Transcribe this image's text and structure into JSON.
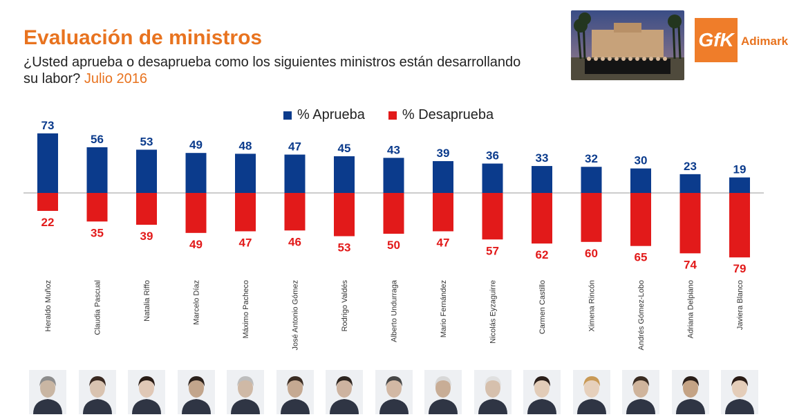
{
  "header": {
    "title": "Evaluación de ministros",
    "subtitle": "¿Usted aprueba o desaprueba como los siguientes ministros están desarrollando su labor?",
    "date": "Julio 2016"
  },
  "brand": {
    "logo_text": "GfK",
    "company": "Adimark",
    "color": "#e8731f"
  },
  "chart_data": {
    "type": "bar",
    "categories": [
      "Heraldo Muñoz",
      "Claudia Pascual",
      "Natalia Riffo",
      "Marcelo Díaz",
      "Máximo Pacheco",
      "José Antonio Gómez",
      "Rodrigo Valdés",
      "Alberto Undurraga",
      "Mario Fernández",
      "Nicolás Eyzaguirre",
      "Carmen Castillo",
      "Ximena Rincón",
      "Andrés Gómez-Lobo",
      "Adriana Delpiano",
      "Javiera Blanco"
    ],
    "series": [
      {
        "name": "% Aprueba",
        "color": "#0b3b8c",
        "values": [
          73,
          56,
          53,
          49,
          48,
          47,
          45,
          43,
          39,
          36,
          33,
          32,
          30,
          23,
          19
        ]
      },
      {
        "name": "% Desaprueba",
        "color": "#e21a1a",
        "values": [
          22,
          35,
          39,
          49,
          47,
          46,
          53,
          50,
          47,
          57,
          62,
          60,
          65,
          74,
          79
        ]
      }
    ],
    "title": "",
    "xlabel": "",
    "ylabel": "",
    "ylim": [
      -80,
      80
    ],
    "legend": "top-center",
    "grid": false
  }
}
